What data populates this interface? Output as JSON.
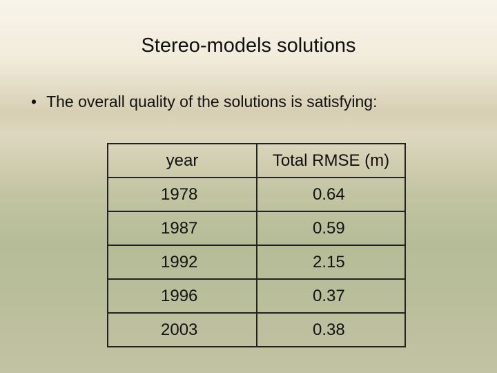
{
  "header": {
    "title": "Stereo-models solutions"
  },
  "bullets": [
    "The overall quality of the solutions is satisfying:"
  ],
  "table": {
    "columns": [
      "year",
      "Total RMSE (m)"
    ],
    "rows": [
      [
        "1978",
        "0.64"
      ],
      [
        "1987",
        "0.59"
      ],
      [
        "1992",
        "2.15"
      ],
      [
        "1996",
        "0.37"
      ],
      [
        "2003",
        "0.38"
      ]
    ]
  }
}
